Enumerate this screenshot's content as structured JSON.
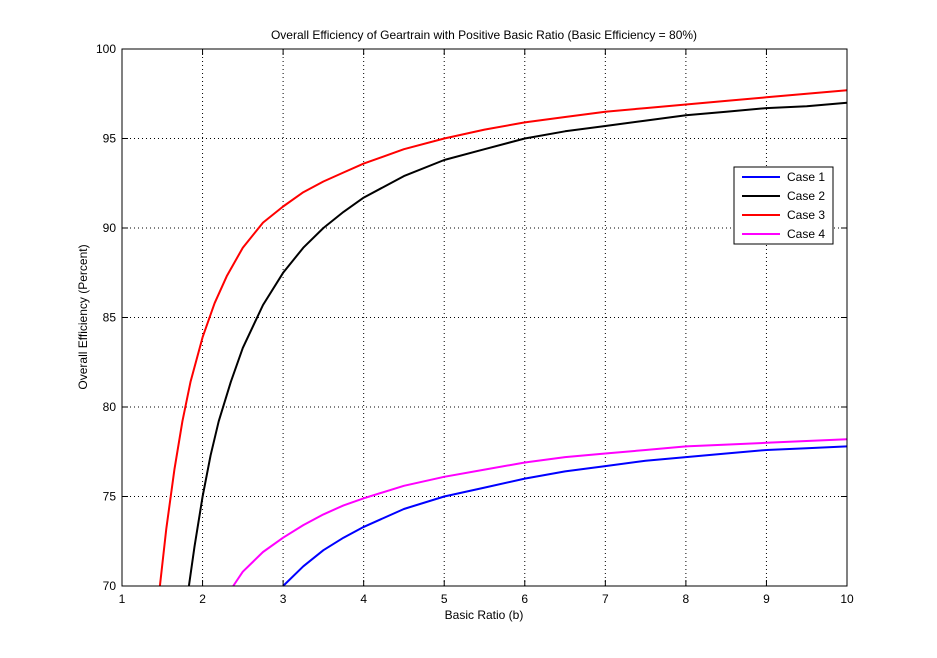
{
  "chart_data": {
    "type": "line",
    "title": "Overall Efficiency of Geartrain with Positive Basic Ratio (Basic Efficiency = 80%)",
    "xlabel": "Basic Ratio (b)",
    "ylabel": "Overall Efficiency (Percent)",
    "xlim": [
      1,
      10
    ],
    "ylim": [
      70,
      100
    ],
    "grid": true,
    "grid_style": "dotted",
    "legend_position": "right",
    "xticks": [
      "1",
      "2",
      "3",
      "4",
      "5",
      "6",
      "7",
      "8",
      "9",
      "10"
    ],
    "yticks": [
      "70",
      "75",
      "80",
      "85",
      "90",
      "95",
      "100"
    ],
    "series": [
      {
        "name": "Case 1",
        "color": "#0000ff",
        "x": [
          3.0,
          3.25,
          3.5,
          3.75,
          4.0,
          4.5,
          5.0,
          5.5,
          6.0,
          6.5,
          7.0,
          7.5,
          8.0,
          8.5,
          9.0,
          9.5,
          10.0
        ],
        "y": [
          70.0,
          71.1,
          72.0,
          72.7,
          73.3,
          74.3,
          75.0,
          75.5,
          76.0,
          76.4,
          76.7,
          77.0,
          77.2,
          77.4,
          77.6,
          77.7,
          77.8
        ]
      },
      {
        "name": "Case 2",
        "color": "#000000",
        "x": [
          1.83,
          1.9,
          2.0,
          2.1,
          2.2,
          2.35,
          2.5,
          2.75,
          3.0,
          3.25,
          3.5,
          3.75,
          4.0,
          4.5,
          5.0,
          5.5,
          6.0,
          6.5,
          7.0,
          7.5,
          8.0,
          8.5,
          9.0,
          9.5,
          10.0
        ],
        "y": [
          70.0,
          72.2,
          75.0,
          77.3,
          79.2,
          81.4,
          83.3,
          85.7,
          87.5,
          88.9,
          90.0,
          90.9,
          91.7,
          92.9,
          93.8,
          94.4,
          95.0,
          95.4,
          95.7,
          96.0,
          96.3,
          96.5,
          96.7,
          96.8,
          97.0
        ]
      },
      {
        "name": "Case 3",
        "color": "#ff0000",
        "x": [
          1.47,
          1.55,
          1.65,
          1.75,
          1.85,
          2.0,
          2.15,
          2.3,
          2.5,
          2.75,
          3.0,
          3.25,
          3.5,
          3.75,
          4.0,
          4.5,
          5.0,
          5.5,
          6.0,
          6.5,
          7.0,
          7.5,
          8.0,
          8.5,
          9.0,
          9.5,
          10.0
        ],
        "y": [
          70.0,
          73.2,
          76.5,
          79.2,
          81.4,
          83.9,
          85.8,
          87.3,
          88.9,
          90.3,
          91.2,
          92.0,
          92.6,
          93.1,
          93.6,
          94.4,
          95.0,
          95.5,
          95.9,
          96.2,
          96.5,
          96.7,
          96.9,
          97.1,
          97.3,
          97.5,
          97.7
        ]
      },
      {
        "name": "Case 4",
        "color": "#ff00ff",
        "x": [
          2.38,
          2.5,
          2.75,
          3.0,
          3.25,
          3.5,
          3.75,
          4.0,
          4.5,
          5.0,
          5.5,
          6.0,
          6.5,
          7.0,
          7.5,
          8.0,
          8.5,
          9.0,
          9.5,
          10.0
        ],
        "y": [
          70.0,
          70.8,
          71.9,
          72.7,
          73.4,
          74.0,
          74.5,
          74.9,
          75.6,
          76.1,
          76.5,
          76.9,
          77.2,
          77.4,
          77.6,
          77.8,
          77.9,
          78.0,
          78.1,
          78.2
        ]
      }
    ]
  }
}
